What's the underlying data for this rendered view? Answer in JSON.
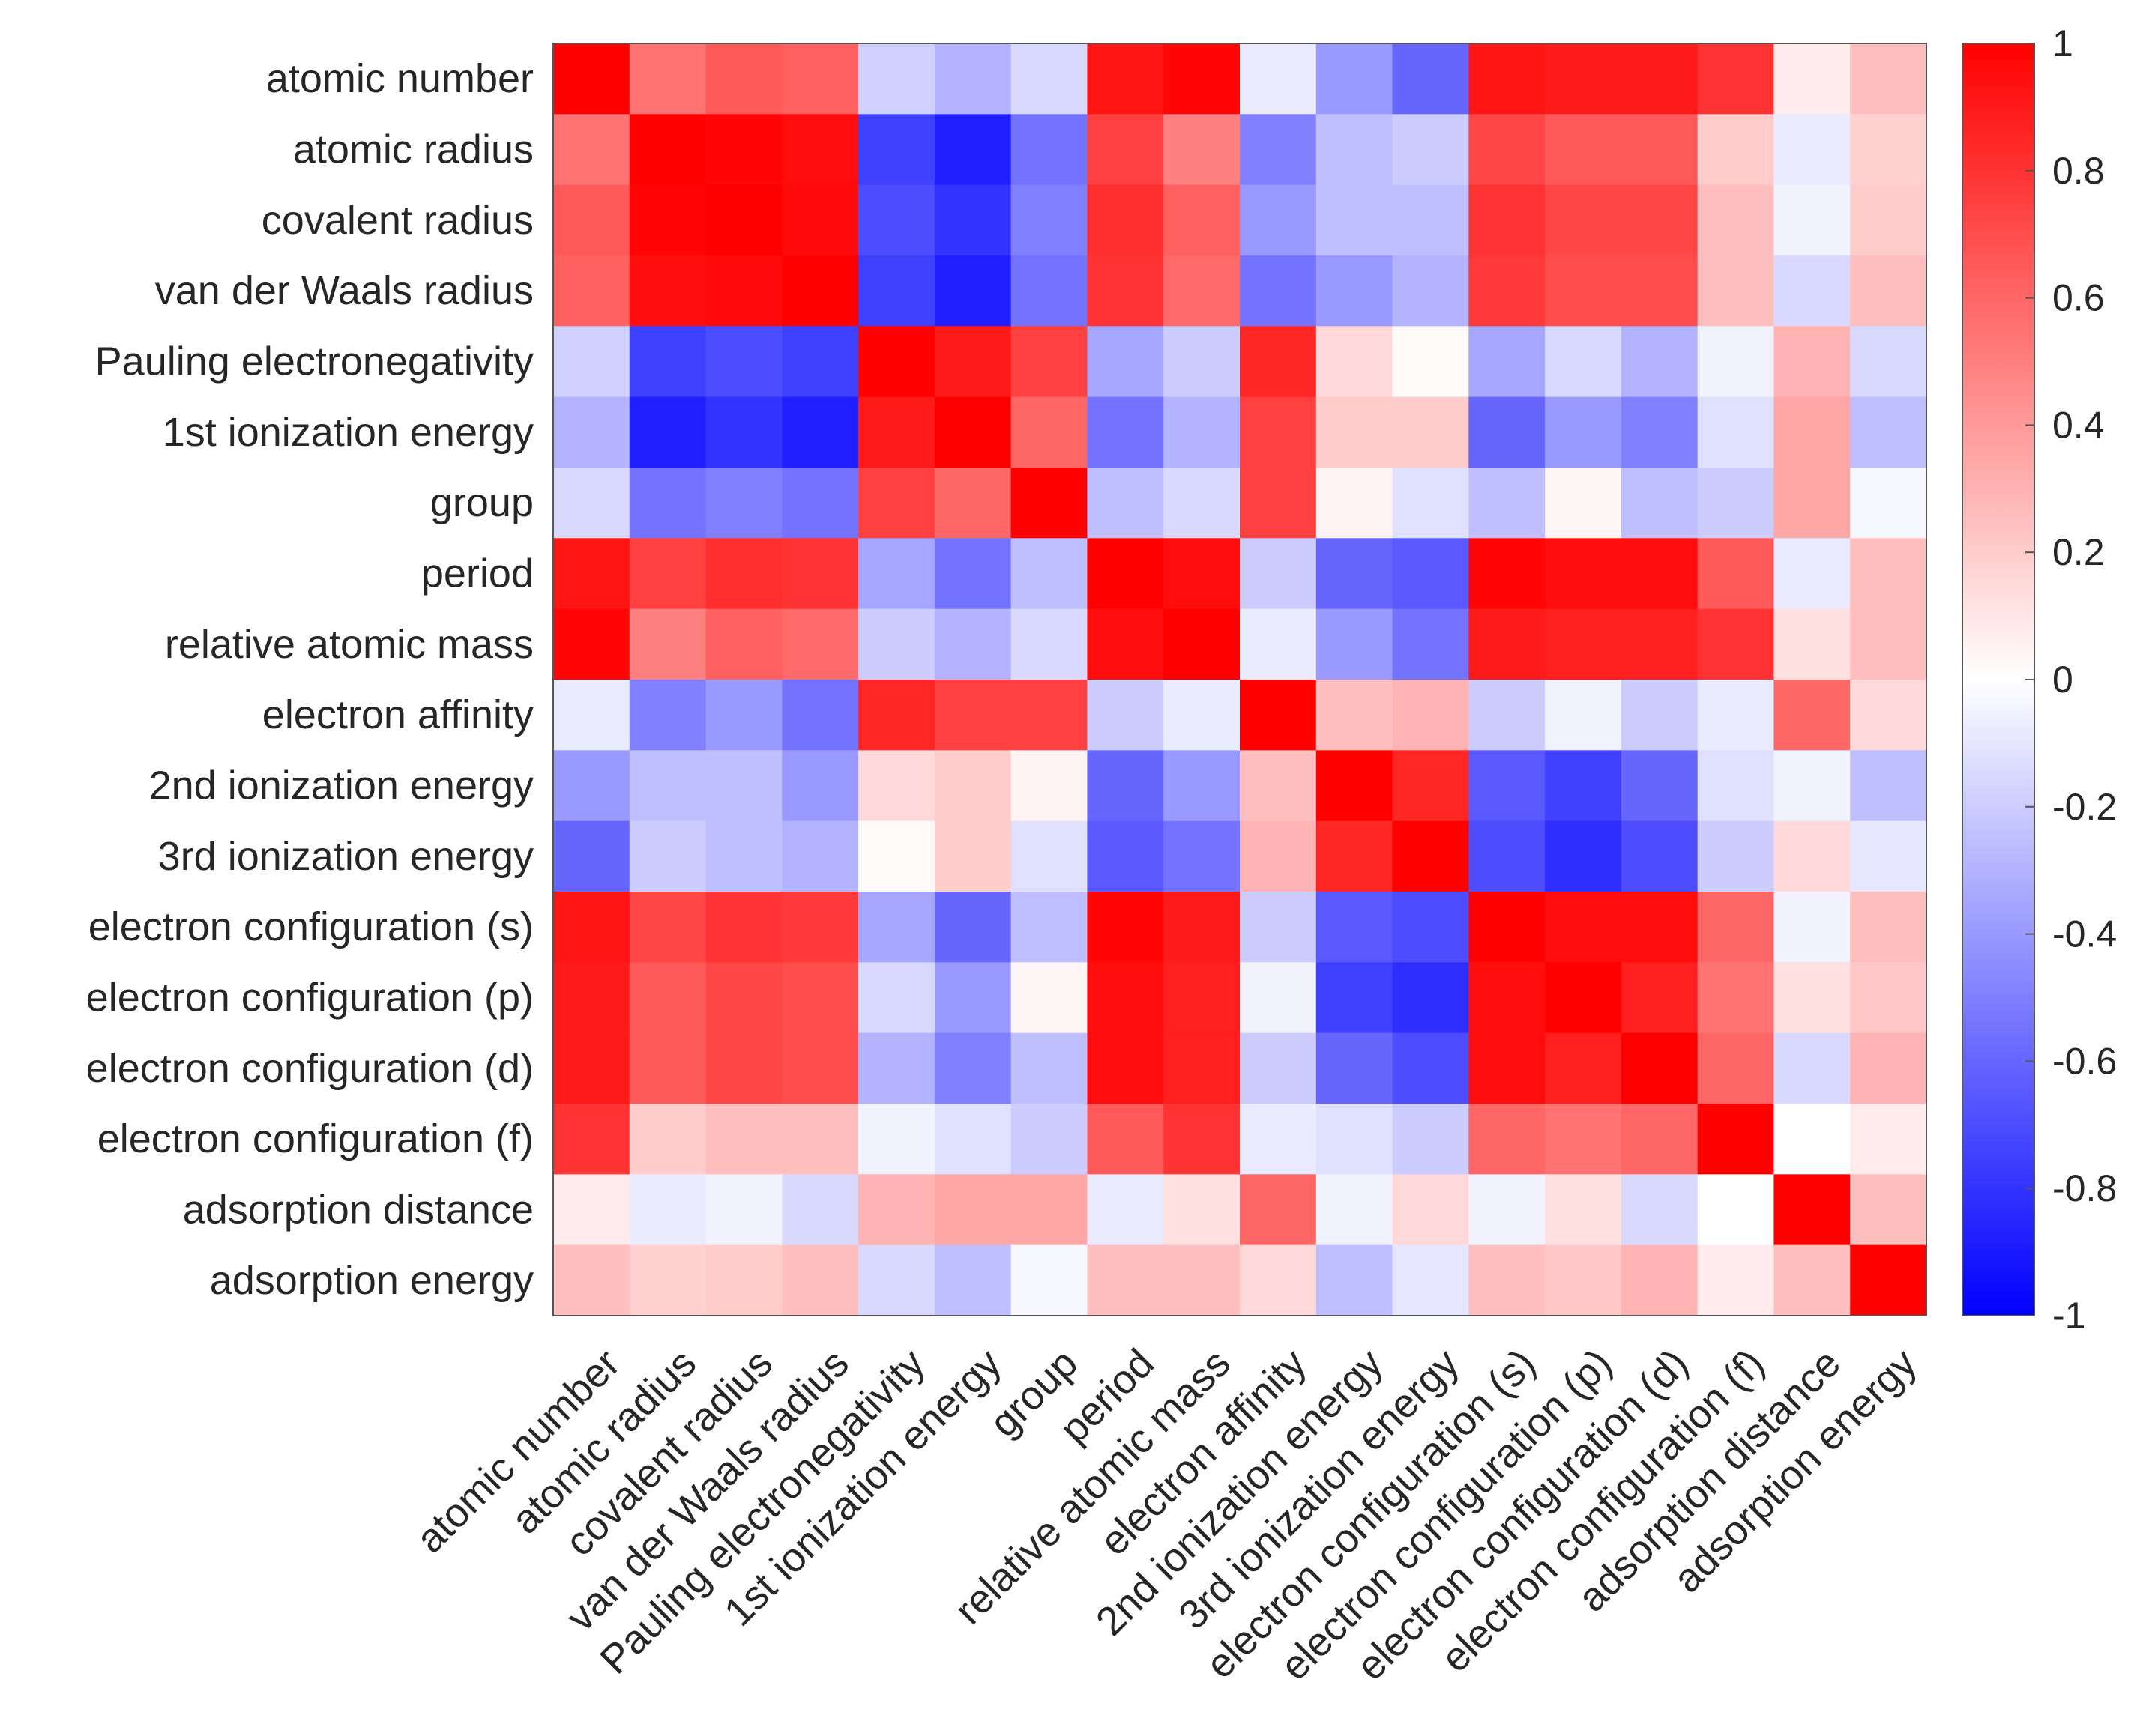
{
  "chart_data": {
    "type": "heatmap",
    "row_labels": [
      "atomic number",
      "atomic radius",
      "covalent radius",
      "van der Waals radius",
      "Pauling electronegativity",
      "1st ionization energy",
      "group",
      "period",
      "relative atomic mass",
      "electron affinity",
      "2nd ionization energy",
      "3rd ionization energy",
      "electron configuration (s)",
      "electron configuration (p)",
      "electron configuration (d)",
      "electron configuration (f)",
      "adsorption distance",
      "adsorption energy"
    ],
    "col_labels": [
      "atomic number",
      "atomic radius",
      "covalent radius",
      "van der Waals radius",
      "Pauling electronegativity",
      "1st ionization energy",
      "group",
      "period",
      "relative atomic mass",
      "electron affinity",
      "2nd ionization energy",
      "3rd ionization energy",
      "electron configuration (s)",
      "electron configuration (p)",
      "electron configuration (d)",
      "electron configuration (f)",
      "adsorption distance",
      "adsorption energy"
    ],
    "values": [
      [
        1.0,
        0.55,
        0.65,
        0.62,
        -0.18,
        -0.3,
        -0.15,
        0.92,
        0.98,
        -0.08,
        -0.4,
        -0.6,
        0.92,
        0.9,
        0.9,
        0.8,
        0.08,
        0.25
      ],
      [
        0.55,
        1.0,
        0.98,
        0.95,
        -0.75,
        -0.88,
        -0.55,
        0.75,
        0.5,
        -0.5,
        -0.25,
        -0.2,
        0.72,
        0.65,
        0.65,
        0.2,
        -0.08,
        0.18
      ],
      [
        0.65,
        0.98,
        1.0,
        0.96,
        -0.7,
        -0.8,
        -0.5,
        0.82,
        0.62,
        -0.4,
        -0.25,
        -0.25,
        0.8,
        0.72,
        0.72,
        0.25,
        -0.05,
        0.2
      ],
      [
        0.62,
        0.95,
        0.96,
        1.0,
        -0.75,
        -0.88,
        -0.55,
        0.8,
        0.58,
        -0.55,
        -0.4,
        -0.3,
        0.78,
        0.7,
        0.7,
        0.25,
        -0.15,
        0.25
      ],
      [
        -0.18,
        -0.75,
        -0.7,
        -0.75,
        1.0,
        0.9,
        0.75,
        -0.35,
        -0.2,
        0.85,
        0.15,
        0.02,
        -0.35,
        -0.15,
        -0.3,
        -0.05,
        0.3,
        -0.15
      ],
      [
        -0.3,
        -0.88,
        -0.8,
        -0.88,
        0.9,
        1.0,
        0.6,
        -0.55,
        -0.3,
        0.75,
        0.2,
        0.2,
        -0.6,
        -0.4,
        -0.5,
        -0.12,
        0.35,
        -0.25
      ],
      [
        -0.15,
        -0.55,
        -0.5,
        -0.55,
        0.75,
        0.6,
        1.0,
        -0.25,
        -0.15,
        0.75,
        0.05,
        -0.12,
        -0.25,
        0.03,
        -0.25,
        -0.2,
        0.35,
        -0.03
      ],
      [
        0.92,
        0.75,
        0.82,
        0.8,
        -0.35,
        -0.55,
        -0.25,
        1.0,
        0.95,
        -0.2,
        -0.6,
        -0.65,
        0.98,
        0.95,
        0.95,
        0.65,
        -0.08,
        0.25
      ],
      [
        0.98,
        0.5,
        0.62,
        0.58,
        -0.2,
        -0.3,
        -0.15,
        0.95,
        1.0,
        -0.08,
        -0.4,
        -0.55,
        0.9,
        0.88,
        0.88,
        0.8,
        0.12,
        0.25
      ],
      [
        -0.08,
        -0.5,
        -0.4,
        -0.55,
        0.85,
        0.75,
        0.75,
        -0.2,
        -0.08,
        1.0,
        0.25,
        0.3,
        -0.2,
        -0.05,
        -0.2,
        -0.08,
        0.6,
        0.15
      ],
      [
        -0.4,
        -0.25,
        -0.25,
        -0.4,
        0.15,
        0.2,
        0.05,
        -0.6,
        -0.4,
        0.25,
        1.0,
        0.85,
        -0.65,
        -0.75,
        -0.6,
        -0.12,
        -0.05,
        -0.25
      ],
      [
        -0.6,
        -0.2,
        -0.25,
        -0.3,
        0.02,
        0.2,
        -0.12,
        -0.65,
        -0.55,
        0.3,
        0.85,
        1.0,
        -0.7,
        -0.82,
        -0.7,
        -0.2,
        0.15,
        -0.1
      ],
      [
        0.92,
        0.72,
        0.8,
        0.78,
        -0.35,
        -0.6,
        -0.25,
        0.98,
        0.9,
        -0.2,
        -0.65,
        -0.7,
        1.0,
        0.95,
        0.95,
        0.6,
        -0.05,
        0.25
      ],
      [
        0.9,
        0.65,
        0.72,
        0.7,
        -0.15,
        -0.4,
        0.03,
        0.95,
        0.88,
        -0.05,
        -0.75,
        -0.82,
        0.95,
        1.0,
        0.88,
        0.55,
        0.12,
        0.22
      ],
      [
        0.9,
        0.65,
        0.72,
        0.7,
        -0.3,
        -0.5,
        -0.25,
        0.95,
        0.88,
        -0.2,
        -0.6,
        -0.7,
        0.95,
        0.88,
        1.0,
        0.6,
        -0.15,
        0.3
      ],
      [
        0.8,
        0.2,
        0.25,
        0.25,
        -0.05,
        -0.12,
        -0.2,
        0.65,
        0.8,
        -0.08,
        -0.12,
        -0.2,
        0.6,
        0.55,
        0.6,
        1.0,
        0.0,
        0.08
      ],
      [
        0.08,
        -0.08,
        -0.05,
        -0.15,
        0.3,
        0.35,
        0.35,
        -0.08,
        0.12,
        0.6,
        -0.05,
        0.15,
        -0.05,
        0.12,
        -0.15,
        0.0,
        1.0,
        0.25
      ],
      [
        0.25,
        0.18,
        0.2,
        0.25,
        -0.15,
        -0.25,
        -0.03,
        0.25,
        0.25,
        0.15,
        -0.25,
        -0.1,
        0.25,
        0.22,
        0.3,
        0.08,
        0.25,
        1.0
      ]
    ],
    "colorbar": {
      "range": [
        -1,
        1
      ],
      "ticks": [
        "1",
        "0.8",
        "0.6",
        "0.4",
        "0.2",
        "0",
        "-0.2",
        "-0.4",
        "-0.6",
        "-0.8",
        "-1"
      ],
      "colormap": {
        "low": "#0000ff",
        "mid": "#ffffff",
        "high": "#ff0000"
      }
    }
  }
}
